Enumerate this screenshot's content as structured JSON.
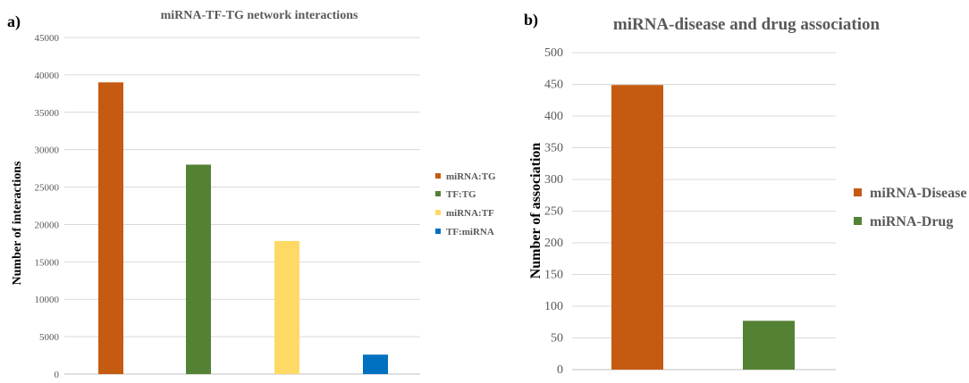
{
  "chart_data": [
    {
      "panel_label": "a)",
      "type": "bar",
      "title": "miRNA-TF-TG network interactions",
      "xlabel": "",
      "ylabel": "Number of interactions",
      "ylim": [
        0,
        45000
      ],
      "yticks": [
        0,
        5000,
        10000,
        15000,
        20000,
        25000,
        30000,
        35000,
        40000,
        45000
      ],
      "grid": true,
      "legend_position": "right",
      "series": [
        {
          "name": "miRNA:TG",
          "value": 39000,
          "color": "#C55A11"
        },
        {
          "name": "TF:TG",
          "value": 28000,
          "color": "#548235"
        },
        {
          "name": "miRNA:TF",
          "value": 17800,
          "color": "#FFD966"
        },
        {
          "name": "TF:miRNA",
          "value": 2600,
          "color": "#0070C0"
        }
      ]
    },
    {
      "panel_label": "b)",
      "type": "bar",
      "title": "miRNA-disease and drug association",
      "xlabel": "",
      "ylabel": "Number of association",
      "ylim": [
        0,
        500
      ],
      "yticks": [
        0,
        50,
        100,
        150,
        200,
        250,
        300,
        350,
        400,
        450,
        500
      ],
      "grid": true,
      "legend_position": "right",
      "series": [
        {
          "name": "miRNA-Disease",
          "value": 449,
          "color": "#C55A11"
        },
        {
          "name": "miRNA-Drug",
          "value": 77,
          "color": "#548235"
        }
      ]
    }
  ]
}
